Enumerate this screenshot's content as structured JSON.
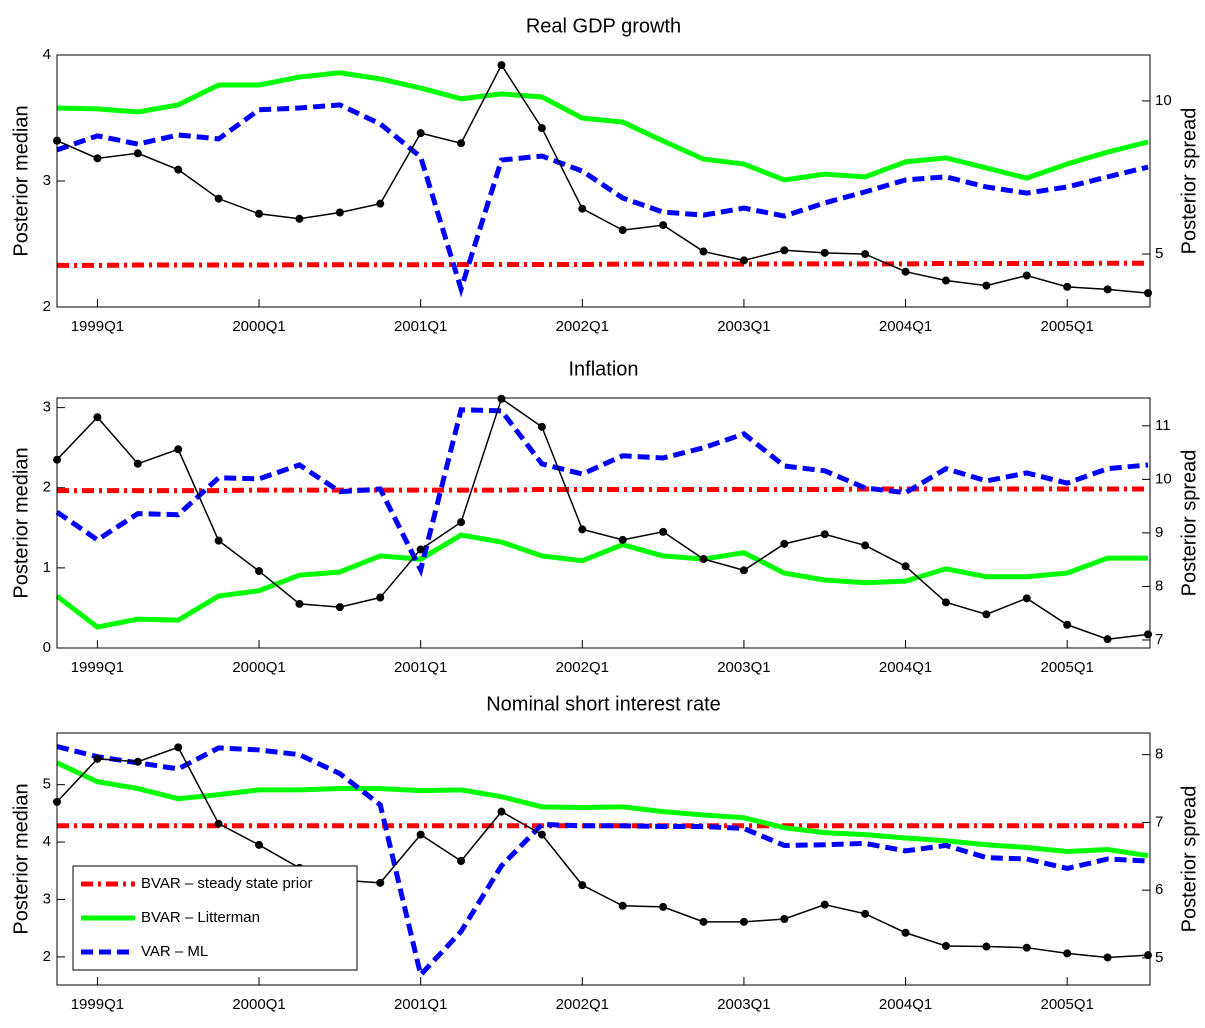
{
  "chart_data": [
    {
      "type": "line",
      "title": "Real GDP growth",
      "ylabel": "Posterior median",
      "y2label": "Posterior spread",
      "categories": [
        null,
        "1999Q1",
        null,
        null,
        null,
        "2000Q1",
        null,
        null,
        null,
        "2001Q1",
        null,
        null,
        null,
        "2002Q1",
        null,
        null,
        null,
        "2003Q1",
        null,
        null,
        null,
        "2004Q1",
        null,
        null,
        null,
        "2005Q1",
        null,
        null
      ],
      "ylim": [
        2,
        4
      ],
      "yticks": [
        2,
        3,
        4
      ],
      "y2lim": [
        3.27,
        11.5
      ],
      "y2ticks": [
        5,
        10
      ],
      "series": [
        {
          "color": "#000000",
          "linestyle": "solid",
          "marker": "dot",
          "values": [
            3.32,
            3.18,
            3.22,
            3.09,
            2.86,
            2.74,
            2.7,
            2.75,
            2.82,
            3.38,
            3.3,
            3.92,
            3.42,
            2.78,
            2.61,
            2.65,
            2.44,
            2.37,
            2.45,
            2.43,
            2.42,
            2.28,
            2.21,
            2.17,
            2.25,
            2.16,
            2.14,
            2.11
          ]
        },
        {
          "color": "#ff0000",
          "linestyle": "dashdot",
          "axis": "y2",
          "values": [
            4.63,
            4.63,
            4.64,
            4.64,
            4.64,
            4.64,
            4.65,
            4.65,
            4.65,
            4.65,
            4.66,
            4.66,
            4.66,
            4.66,
            4.67,
            4.67,
            4.67,
            4.67,
            4.68,
            4.68,
            4.68,
            4.68,
            4.69,
            4.69,
            4.69,
            4.69,
            4.7,
            4.7
          ]
        },
        {
          "color": "#00ff00",
          "linestyle": "solid",
          "axis": "y2",
          "values": [
            9.77,
            9.74,
            9.64,
            9.87,
            10.52,
            10.52,
            10.78,
            10.92,
            10.72,
            10.42,
            10.07,
            10.23,
            10.13,
            9.44,
            9.31,
            8.69,
            8.1,
            7.94,
            7.42,
            7.61,
            7.52,
            8.01,
            8.14,
            7.81,
            7.48,
            7.94,
            8.33,
            8.66
          ]
        },
        {
          "color": "#0000ff",
          "linestyle": "dashed",
          "axis": "y2",
          "values": [
            8.4,
            8.86,
            8.59,
            8.89,
            8.76,
            9.71,
            9.77,
            9.87,
            9.25,
            8.17,
            3.86,
            8.07,
            8.2,
            7.71,
            6.83,
            6.37,
            6.27,
            6.5,
            6.24,
            6.67,
            7.03,
            7.42,
            7.52,
            7.19,
            6.99,
            7.19,
            7.52,
            7.84
          ]
        }
      ]
    },
    {
      "type": "line",
      "title": "Inflation",
      "ylabel": "Posterior median",
      "y2label": "Posterior spread",
      "categories": [
        null,
        "1999Q1",
        null,
        null,
        null,
        "2000Q1",
        null,
        null,
        null,
        "2001Q1",
        null,
        null,
        null,
        "2002Q1",
        null,
        null,
        null,
        "2003Q1",
        null,
        null,
        null,
        "2004Q1",
        null,
        null,
        null,
        "2005Q1",
        null,
        null
      ],
      "ylim": [
        0,
        3.12
      ],
      "yticks": [
        0,
        1,
        2,
        3
      ],
      "y2lim": [
        6.85,
        11.52
      ],
      "y2ticks": [
        7,
        8,
        9,
        10,
        11
      ],
      "series": [
        {
          "color": "#000000",
          "linestyle": "solid",
          "marker": "dot",
          "values": [
            2.35,
            2.88,
            2.3,
            2.48,
            1.34,
            0.96,
            0.55,
            0.51,
            0.63,
            1.23,
            1.57,
            3.11,
            2.76,
            1.48,
            1.35,
            1.45,
            1.11,
            0.97,
            1.3,
            1.42,
            1.28,
            1.02,
            0.57,
            0.42,
            0.62,
            0.29,
            0.11,
            0.17
          ]
        },
        {
          "color": "#ff0000",
          "linestyle": "dashdot",
          "axis": "y2",
          "values": [
            9.79,
            9.79,
            9.79,
            9.79,
            9.79,
            9.8,
            9.8,
            9.8,
            9.8,
            9.8,
            9.8,
            9.8,
            9.81,
            9.81,
            9.81,
            9.81,
            9.81,
            9.81,
            9.81,
            9.81,
            9.82,
            9.82,
            9.82,
            9.82,
            9.82,
            9.82,
            9.82,
            9.82
          ]
        },
        {
          "color": "#00ff00",
          "linestyle": "solid",
          "axis": "y2",
          "values": [
            7.82,
            7.24,
            7.39,
            7.37,
            7.82,
            7.92,
            8.21,
            8.27,
            8.57,
            8.51,
            8.96,
            8.83,
            8.57,
            8.48,
            8.78,
            8.57,
            8.51,
            8.63,
            8.25,
            8.12,
            8.07,
            8.1,
            8.33,
            8.18,
            8.18,
            8.25,
            8.53,
            8.53
          ]
        },
        {
          "color": "#0000ff",
          "linestyle": "dashed",
          "axis": "y2",
          "values": [
            9.39,
            8.87,
            9.36,
            9.34,
            10.03,
            10.01,
            10.27,
            9.77,
            9.82,
            8.31,
            11.3,
            11.28,
            10.29,
            10.1,
            10.44,
            10.4,
            10.59,
            10.85,
            10.25,
            10.16,
            9.84,
            9.75,
            10.2,
            9.97,
            10.12,
            9.93,
            10.2,
            10.27
          ]
        }
      ]
    },
    {
      "type": "line",
      "title": "Nominal short interest rate",
      "ylabel": "Posterior median",
      "y2label": "Posterior spread",
      "categories": [
        null,
        "1999Q1",
        null,
        null,
        null,
        "2000Q1",
        null,
        null,
        null,
        "2001Q1",
        null,
        null,
        null,
        "2002Q1",
        null,
        null,
        null,
        "2003Q1",
        null,
        null,
        null,
        "2004Q1",
        null,
        null,
        null,
        "2005Q1",
        null,
        null
      ],
      "ylim": [
        1.51,
        5.9
      ],
      "yticks": [
        2,
        3,
        4,
        5
      ],
      "y2lim": [
        4.6,
        8.32
      ],
      "y2ticks": [
        5,
        6,
        7,
        8
      ],
      "legend": "lower left",
      "series": [
        {
          "color": "#000000",
          "linestyle": "solid",
          "marker": "dot",
          "values": [
            4.7,
            5.45,
            5.4,
            5.65,
            4.32,
            3.95,
            3.55,
            3.34,
            3.29,
            4.13,
            3.67,
            4.53,
            4.13,
            3.25,
            2.89,
            2.87,
            2.61,
            2.61,
            2.66,
            2.91,
            2.75,
            2.42,
            2.19,
            2.18,
            2.16,
            2.06,
            1.99,
            2.03
          ]
        },
        {
          "name": "BVAR – steady state prior",
          "color": "#ff0000",
          "linestyle": "dashdot",
          "axis": "y2",
          "values": [
            6.95,
            6.95,
            6.95,
            6.95,
            6.95,
            6.95,
            6.95,
            6.95,
            6.95,
            6.95,
            6.95,
            6.95,
            6.95,
            6.95,
            6.95,
            6.95,
            6.95,
            6.95,
            6.95,
            6.95,
            6.95,
            6.95,
            6.95,
            6.95,
            6.95,
            6.95,
            6.95,
            6.95
          ]
        },
        {
          "name": "BVAR – Litterman",
          "color": "#00ff00",
          "linestyle": "solid",
          "axis": "y2",
          "values": [
            7.88,
            7.6,
            7.5,
            7.35,
            7.41,
            7.48,
            7.48,
            7.5,
            7.5,
            7.47,
            7.48,
            7.38,
            7.23,
            7.22,
            7.23,
            7.16,
            7.11,
            7.07,
            6.92,
            6.85,
            6.82,
            6.77,
            6.73,
            6.67,
            6.63,
            6.57,
            6.6,
            6.51
          ]
        },
        {
          "name": "VAR – ML",
          "color": "#0000ff",
          "linestyle": "dashed",
          "axis": "y2",
          "values": [
            8.12,
            7.97,
            7.88,
            7.79,
            8.1,
            8.07,
            8.0,
            7.72,
            7.26,
            4.75,
            5.39,
            6.36,
            6.97,
            6.95,
            6.95,
            6.94,
            6.94,
            6.91,
            6.66,
            6.67,
            6.69,
            6.58,
            6.66,
            6.48,
            6.46,
            6.32,
            6.46,
            6.43
          ]
        }
      ]
    }
  ]
}
